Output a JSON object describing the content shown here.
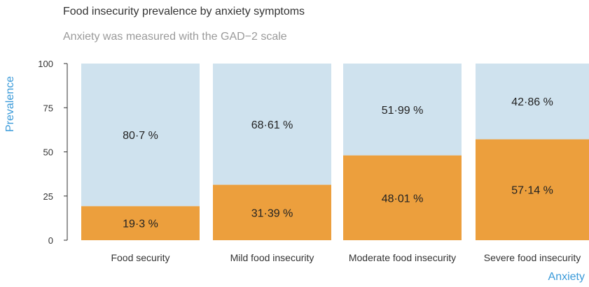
{
  "chart_data": {
    "type": "bar",
    "stacked": true,
    "title": "Food insecurity prevalence by anxiety symptoms",
    "subtitle": "Anxiety was measured with the GAD−2 scale",
    "ylabel": "Prevalence",
    "xlabel": "Anxiety",
    "ylim": [
      0,
      100
    ],
    "yticks": [
      0,
      25,
      50,
      75,
      100
    ],
    "categories": [
      "Food security",
      "Mild food insecurity",
      "Moderate food insecurity",
      "Severe food insecurity"
    ],
    "series": [
      {
        "values": [
          19.3,
          31.39,
          48.01,
          57.14
        ],
        "labels": [
          "19·3 %",
          "31·39 %",
          "48·01 %",
          "57·14 %"
        ],
        "color": "#ec9f3d"
      },
      {
        "values": [
          80.7,
          68.61,
          51.99,
          42.86
        ],
        "labels": [
          "80·7 %",
          "68·61 %",
          "51·99 %",
          "42·86 %"
        ],
        "color": "#cfe2ee"
      }
    ],
    "grid": false
  },
  "colors": {
    "accent": "#3a9ad9",
    "title": "#333333",
    "subtitle": "#9a9a9a"
  }
}
